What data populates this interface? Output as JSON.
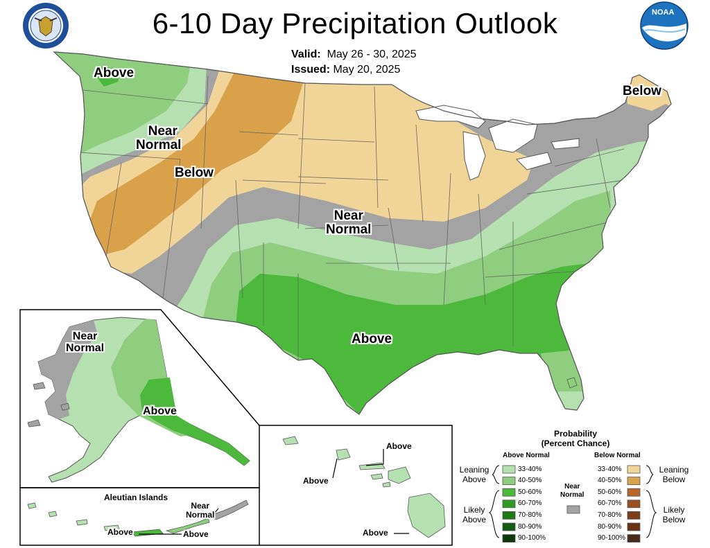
{
  "header": {
    "title": "6-10 Day Precipitation Outlook",
    "valid_label": "Valid:",
    "valid_value": "May 26 - 30, 2025",
    "issued_label": "Issued:",
    "issued_value": "May 20, 2025"
  },
  "logos": {
    "left": "department-of-commerce-seal",
    "right": "noaa-logo",
    "right_text": "NOAA"
  },
  "conus_labels": {
    "above_nw": "Above",
    "near_normal_nw_1": "Near",
    "near_normal_nw_2": "Normal",
    "below_west": "Below",
    "below_ne": "Below",
    "near_normal_central_1": "Near",
    "near_normal_central_2": "Normal",
    "above_south": "Above"
  },
  "alaska_labels": {
    "near_normal_1": "Near",
    "near_normal_2": "Normal",
    "above": "Above"
  },
  "aleutian": {
    "title": "Aleutian Islands",
    "near_1": "Near",
    "near_2": "Normal",
    "above_left": "Above",
    "above_right": "Above"
  },
  "hawaii": {
    "above_top": "Above",
    "above_left": "Above",
    "above_bottom": "Above"
  },
  "legend": {
    "title_1": "Probability",
    "title_2": "(Percent Chance)",
    "above_header": "Above Normal",
    "below_header": "Below Normal",
    "near_normal_1": "Near",
    "near_normal_2": "Normal",
    "leaning_above_1": "Leaning",
    "leaning_above_2": "Above",
    "likely_above_1": "Likely",
    "likely_above_2": "Above",
    "leaning_below_1": "Leaning",
    "leaning_below_2": "Below",
    "likely_below_1": "Likely",
    "likely_below_2": "Below",
    "above_bins": [
      {
        "label": "33-40%",
        "color": "#b5e0b0"
      },
      {
        "label": "40-50%",
        "color": "#8fce7f"
      },
      {
        "label": "50-60%",
        "color": "#4cb83c"
      },
      {
        "label": "60-70%",
        "color": "#2e9a24"
      },
      {
        "label": "70-80%",
        "color": "#1d7a16"
      },
      {
        "label": "80-90%",
        "color": "#145a10"
      },
      {
        "label": "90-100%",
        "color": "#0d3a0a"
      }
    ],
    "below_bins": [
      {
        "label": "33-40%",
        "color": "#f1d598"
      },
      {
        "label": "40-50%",
        "color": "#d9a24a"
      },
      {
        "label": "50-60%",
        "color": "#b8672a"
      },
      {
        "label": "60-70%",
        "color": "#9a4f22"
      },
      {
        "label": "70-80%",
        "color": "#7e3e1c"
      },
      {
        "label": "80-90%",
        "color": "#6a3318"
      },
      {
        "label": "90-100%",
        "color": "#4a2a1a"
      }
    ],
    "near_normal_color": "#a3a3a3"
  },
  "colors": {
    "above_33_40": "#b5e0b0",
    "above_40_50": "#8fce7f",
    "above_50_60": "#4cb83c",
    "below_33_40": "#f1d598",
    "below_40_50": "#d9a24a",
    "near_normal": "#a3a3a3",
    "water": "#ffffff",
    "border": "#555555"
  }
}
